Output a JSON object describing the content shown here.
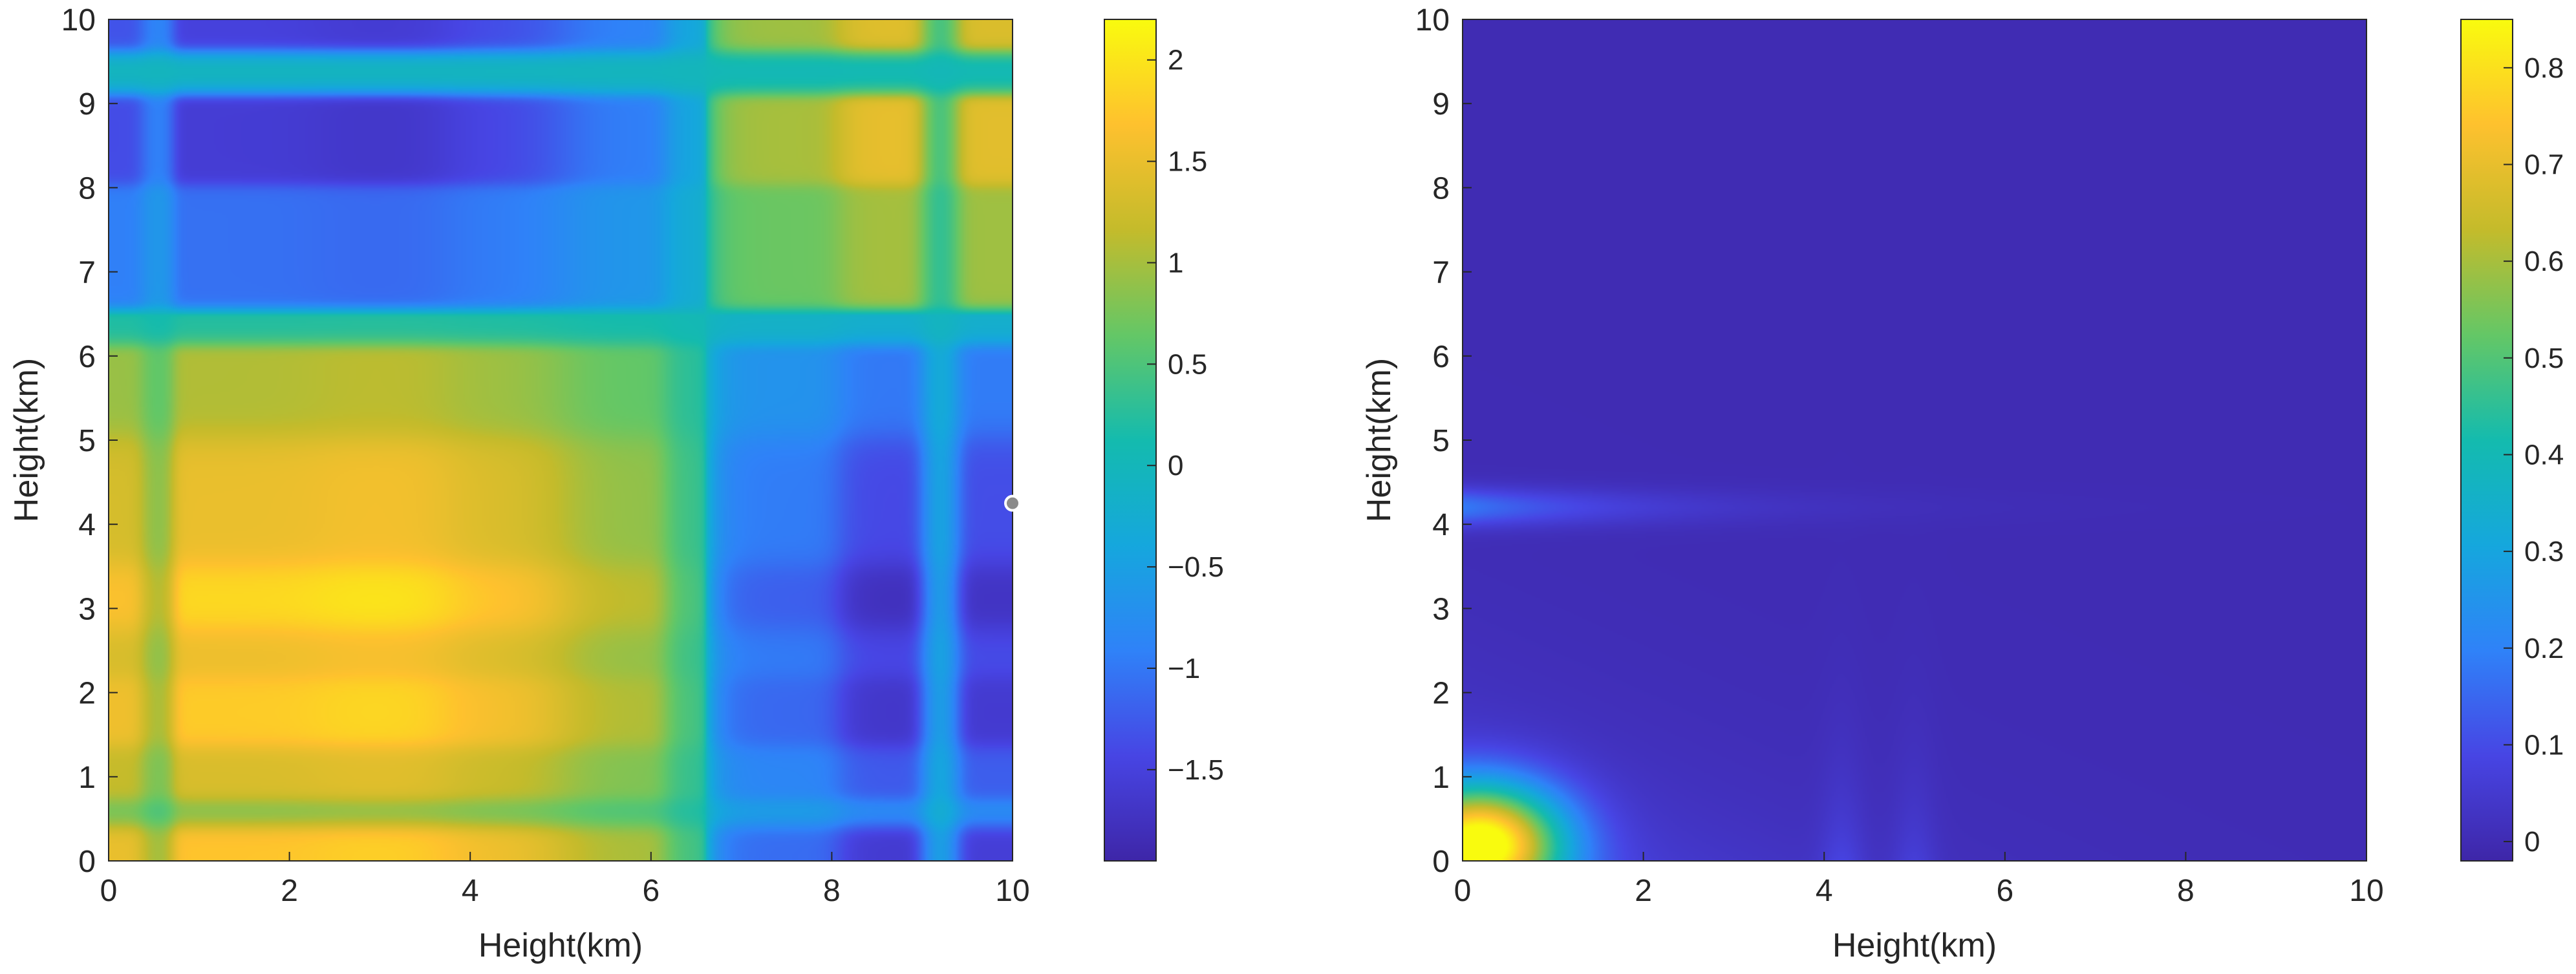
{
  "chart_data": [
    {
      "type": "heatmap",
      "xlabel": "Height(km)",
      "ylabel": "Height(km)",
      "xlim": [
        0,
        10
      ],
      "ylim": [
        0,
        10
      ],
      "xticks": [
        0,
        2,
        4,
        6,
        8,
        10
      ],
      "yticks": [
        0,
        1,
        2,
        3,
        4,
        5,
        6,
        7,
        8,
        9,
        10
      ],
      "colorbar": {
        "range": [
          -1.95,
          2.2
        ],
        "ticks": [
          2,
          1.5,
          1,
          0.5,
          0,
          -0.5,
          -1,
          -1.5
        ],
        "tick_labels": [
          "2",
          "1.5",
          "1",
          "0.5",
          "0",
          "−0.5",
          "−1",
          "−1.5"
        ]
      },
      "colormap": "parula",
      "grid": false,
      "marker": {
        "x": 10,
        "y": 4.25,
        "color": "#8a8a8a"
      },
      "x_bands": [
        {
          "center": 0.2,
          "value": 1.3,
          "width": 0.3
        },
        {
          "center": 0.5,
          "value": 0.3,
          "width": 0.15
        },
        {
          "center": 1.7,
          "value": 1.7,
          "width": 0.7
        },
        {
          "center": 3.0,
          "value": 1.9,
          "width": 0.8
        },
        {
          "center": 4.4,
          "value": 1.4,
          "width": 0.7
        },
        {
          "center": 5.6,
          "value": 0.6,
          "width": 0.8
        },
        {
          "center": 6.35,
          "value": 0.0,
          "width": 0.2
        },
        {
          "center": 7.4,
          "value": -0.7,
          "width": 0.6
        },
        {
          "center": 8.6,
          "value": -1.5,
          "width": 0.4
        },
        {
          "center": 9.2,
          "value": 0.1,
          "width": 0.2
        },
        {
          "center": 9.8,
          "value": -1.4,
          "width": 0.4
        }
      ],
      "y_bands": [
        {
          "center": 0.2,
          "value": 1.3,
          "width": 0.25
        },
        {
          "center": 0.55,
          "value": 0.2,
          "width": 0.18
        },
        {
          "center": 1.0,
          "value": 0.8,
          "width": 0.3
        },
        {
          "center": 1.8,
          "value": 1.4,
          "width": 0.35
        },
        {
          "center": 2.5,
          "value": 1.0,
          "width": 0.3
        },
        {
          "center": 3.1,
          "value": 1.6,
          "width": 0.4
        },
        {
          "center": 3.9,
          "value": 1.0,
          "width": 0.4
        },
        {
          "center": 4.6,
          "value": 1.0,
          "width": 0.4
        },
        {
          "center": 5.5,
          "value": 0.5,
          "width": 0.5
        },
        {
          "center": 6.3,
          "value": 0.0,
          "width": 0.15
        },
        {
          "center": 7.3,
          "value": -0.5,
          "width": 0.4
        },
        {
          "center": 8.6,
          "value": -1.1,
          "width": 0.3
        },
        {
          "center": 9.4,
          "value": 0.0,
          "width": 0.2
        },
        {
          "center": 9.9,
          "value": -1.0,
          "width": 0.2
        }
      ]
    },
    {
      "type": "heatmap",
      "xlabel": "Height(km)",
      "ylabel": "Height(km)",
      "xlim": [
        0,
        10
      ],
      "ylim": [
        0,
        10
      ],
      "xticks": [
        0,
        2,
        4,
        6,
        8,
        10
      ],
      "yticks": [
        0,
        1,
        2,
        3,
        4,
        5,
        6,
        7,
        8,
        9,
        10
      ],
      "colorbar": {
        "range": [
          -0.02,
          0.85
        ],
        "ticks": [
          0.8,
          0.7,
          0.6,
          0.5,
          0.4,
          0.3,
          0.2,
          0.1,
          0
        ],
        "tick_labels": [
          "0.8",
          "0.7",
          "0.6",
          "0.5",
          "0.4",
          "0.3",
          "0.2",
          "0.1",
          "0"
        ]
      },
      "colormap": "parula",
      "grid": false,
      "field": {
        "background": 0.0,
        "peak": {
          "x": 0.2,
          "y": 0.2,
          "value": 0.85
        },
        "decay_x": 0.9,
        "decay_y": 0.7,
        "ridges": [
          {
            "x": 4.2,
            "value": 0.06
          },
          {
            "x": 5.0,
            "value": 0.05
          }
        ]
      }
    }
  ]
}
